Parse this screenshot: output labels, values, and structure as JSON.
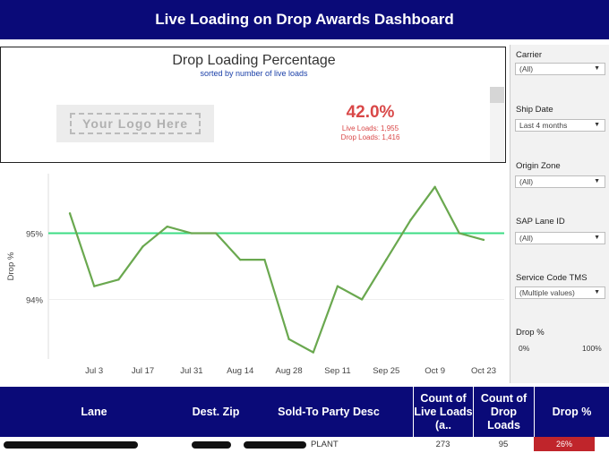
{
  "header": {
    "title": "Live Loading on Drop Awards Dashboard"
  },
  "kpi": {
    "title": "Drop Loading Percentage",
    "subtitle": "sorted by number of live loads",
    "logo_text": "Your Logo Here",
    "value": "42.0%",
    "live_loads": "Live Loads: 1,955",
    "drop_loads": "Drop Loads: 1,416"
  },
  "filters": {
    "carrier": {
      "label": "Carrier",
      "value": "(All)"
    },
    "ship_date": {
      "label": "Ship Date",
      "value": "Last 4 months"
    },
    "origin_zone": {
      "label": "Origin Zone",
      "value": "(All)"
    },
    "sap_lane": {
      "label": "SAP Lane ID",
      "value": "(All)"
    },
    "service_code": {
      "label": "Service Code TMS",
      "value": "(Multiple values)"
    },
    "drop_pct": {
      "label": "Drop %",
      "min": "0%",
      "max": "100%"
    }
  },
  "chart_data": {
    "type": "line",
    "ylabel": "Drop %",
    "xlabel": "",
    "x_ticks": [
      "Jul 3",
      "Jul 17",
      "Jul 31",
      "Aug 14",
      "Aug 28",
      "Sep 11",
      "Sep 25",
      "Oct 9",
      "Oct 23"
    ],
    "y_ticks": [
      "94%",
      "95%"
    ],
    "ylim": [
      93.1,
      95.9
    ],
    "reference_line": 95.0,
    "x": [
      "Jun 26",
      "Jul 3",
      "Jul 10",
      "Jul 17",
      "Jul 24",
      "Jul 31",
      "Aug 7",
      "Aug 14",
      "Aug 21",
      "Aug 28",
      "Sep 4",
      "Sep 11",
      "Sep 18",
      "Sep 25",
      "Oct 2",
      "Oct 9",
      "Oct 16",
      "Oct 23"
    ],
    "values": [
      95.3,
      94.2,
      94.3,
      94.8,
      95.1,
      95.0,
      95.0,
      94.6,
      94.6,
      93.4,
      93.2,
      94.2,
      94.0,
      94.6,
      95.2,
      95.7,
      95.0,
      94.9
    ],
    "series_color": "#6aa84f",
    "reference_color": "#3ddc84",
    "grid": true
  },
  "table": {
    "headers": {
      "lane": "Lane",
      "dest_zip": "Dest. Zip",
      "sold_to": "Sold-To Party Desc",
      "live_loads": "Count of Live Loads (a..",
      "drop_loads": "Count of Drop Loads",
      "drop_pct": "Drop %"
    },
    "rows": [
      {
        "sold_to": "PLANT",
        "live_loads": "273",
        "drop_loads": "95",
        "drop_pct": "26%"
      }
    ]
  }
}
